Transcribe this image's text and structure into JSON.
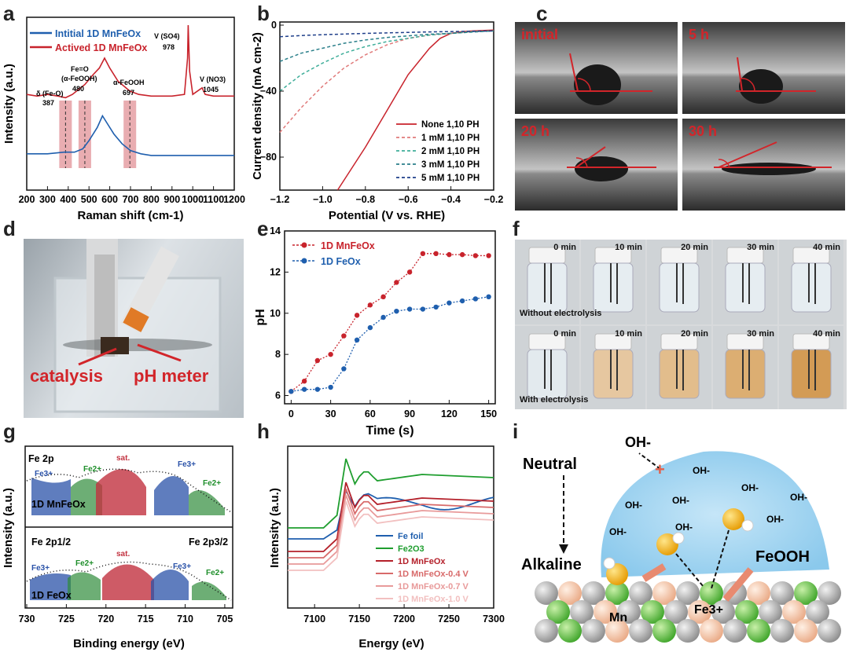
{
  "panel_labels": [
    "a",
    "b",
    "c",
    "d",
    "e",
    "f",
    "g",
    "h",
    "i"
  ],
  "panel_a": {
    "chart_data": {
      "type": "line",
      "xlabel": "Raman shift (cm-1)",
      "ylabel": "Intensity (a.u.)",
      "xlim": [
        200,
        1200
      ],
      "xticks": [
        200,
        300,
        400,
        500,
        600,
        700,
        800,
        900,
        1000,
        1100,
        1200
      ],
      "series": [
        {
          "name": "Intitial 1D MnFeOx",
          "color": "#1f5fae",
          "x": [
            200,
            300,
            380,
            430,
            470,
            500,
            540,
            565,
            590,
            620,
            660,
            700,
            750,
            800,
            900,
            1000,
            1100,
            1200
          ],
          "y": [
            0.22,
            0.22,
            0.23,
            0.23,
            0.25,
            0.3,
            0.38,
            0.45,
            0.4,
            0.34,
            0.28,
            0.24,
            0.22,
            0.21,
            0.21,
            0.21,
            0.21,
            0.21
          ]
        },
        {
          "name": "Actived 1D MnFeOx",
          "color": "#c8232c",
          "x": [
            200,
            250,
            300,
            350,
            387,
            420,
            480,
            520,
            550,
            575,
            600,
            640,
            697,
            740,
            800,
            900,
            960,
            975,
            978,
            985,
            1000,
            1045,
            1060,
            1100,
            1200
          ],
          "y": [
            0.58,
            0.57,
            0.58,
            0.57,
            0.56,
            0.58,
            0.64,
            0.7,
            0.74,
            0.8,
            0.74,
            0.66,
            0.6,
            0.58,
            0.57,
            0.57,
            0.58,
            0.8,
            1.0,
            0.72,
            0.58,
            0.62,
            0.58,
            0.57,
            0.57
          ]
        }
      ],
      "annotations": [
        {
          "text": "δ (Fe-O)",
          "value": "387"
        },
        {
          "text": "Fe=O",
          "text2": "(α-FeOOH)",
          "value": "480"
        },
        {
          "text": "α-FeOOH",
          "value": "697"
        },
        {
          "text": "V (SO4)",
          "value": "978"
        },
        {
          "text": "V (NO3)",
          "value": "1045"
        }
      ],
      "highlight_bands": [
        387,
        480,
        697
      ]
    }
  },
  "panel_b": {
    "chart_data": {
      "type": "line",
      "xlabel": "Potential (V vs. RHE)",
      "ylabel": "Current density (mA cm-2)",
      "xlim": [
        -1.2,
        -0.2
      ],
      "ylim": [
        -100,
        0
      ],
      "xticks": [
        -1.2,
        -1.0,
        -0.8,
        -0.6,
        -0.4,
        -0.2
      ],
      "yticks": [
        0,
        -40,
        -80
      ],
      "series": [
        {
          "name": "None 1,10 PH",
          "color": "#c8232c",
          "dash": false,
          "x": [
            -0.93,
            -0.88,
            -0.8,
            -0.7,
            -0.6,
            -0.5,
            -0.45,
            -0.4,
            -0.35,
            -0.3,
            -0.2
          ],
          "y": [
            -100,
            -90,
            -74,
            -52,
            -30,
            -14,
            -8,
            -5,
            -4,
            -3.5,
            -3
          ]
        },
        {
          "name": "1 mM 1,10 PH",
          "color": "#e07a7a",
          "dash": true,
          "x": [
            -1.2,
            -1.1,
            -1.0,
            -0.9,
            -0.8,
            -0.7,
            -0.6,
            -0.5,
            -0.4,
            -0.3,
            -0.2
          ],
          "y": [
            -65,
            -50,
            -37,
            -26,
            -18,
            -12,
            -8,
            -6,
            -5,
            -4,
            -3.5
          ]
        },
        {
          "name": "2 mM 1,10 PH",
          "color": "#3fae9a",
          "dash": true,
          "x": [
            -1.2,
            -1.1,
            -1.0,
            -0.9,
            -0.8,
            -0.7,
            -0.6,
            -0.5,
            -0.4,
            -0.3,
            -0.2
          ],
          "y": [
            -40,
            -30,
            -23,
            -17,
            -13,
            -10,
            -8,
            -6,
            -5,
            -4,
            -3.5
          ]
        },
        {
          "name": "3 mM 1,10 PH",
          "color": "#2a7f8a",
          "dash": true,
          "x": [
            -1.2,
            -1.1,
            -1.0,
            -0.9,
            -0.8,
            -0.7,
            -0.6,
            -0.5,
            -0.4,
            -0.3,
            -0.2
          ],
          "y": [
            -22,
            -17,
            -14,
            -11,
            -9,
            -7.5,
            -6.5,
            -5.5,
            -5,
            -4.2,
            -3.5
          ]
        },
        {
          "name": "5 mM 1,10 PH",
          "color": "#1f3f8a",
          "dash": true,
          "x": [
            -1.2,
            -1.1,
            -1.0,
            -0.9,
            -0.8,
            -0.7,
            -0.6,
            -0.5,
            -0.4,
            -0.3,
            -0.2
          ],
          "y": [
            -7,
            -6.3,
            -5.8,
            -5.4,
            -5,
            -4.7,
            -4.4,
            -4.1,
            -3.9,
            -3.7,
            -3.5
          ]
        }
      ]
    }
  },
  "panel_c": {
    "tiles": [
      "initial",
      "5 h",
      "20 h",
      "30 h"
    ]
  },
  "panel_d": {
    "labels": [
      "catalysis",
      "pH meter"
    ]
  },
  "panel_e": {
    "chart_data": {
      "type": "line",
      "xlabel": "Time (s)",
      "ylabel": "pH",
      "xlim": [
        -5,
        155
      ],
      "ylim": [
        5.6,
        14
      ],
      "xticks": [
        0,
        30,
        60,
        90,
        120,
        150
      ],
      "yticks": [
        6,
        8,
        10,
        12,
        14
      ],
      "series": [
        {
          "name": "1D MnFeOx",
          "color": "#c8232c",
          "x": [
            0,
            10,
            20,
            30,
            40,
            50,
            60,
            70,
            80,
            90,
            100,
            110,
            120,
            130,
            140,
            150
          ],
          "y": [
            6.2,
            6.7,
            7.7,
            8.0,
            8.9,
            9.9,
            10.4,
            10.8,
            11.5,
            12.0,
            12.9,
            12.9,
            12.85,
            12.85,
            12.8,
            12.8
          ]
        },
        {
          "name": "1D FeOx",
          "color": "#1f5fae",
          "x": [
            0,
            10,
            20,
            30,
            40,
            50,
            60,
            70,
            80,
            90,
            100,
            110,
            120,
            130,
            140,
            150
          ],
          "y": [
            6.2,
            6.3,
            6.3,
            6.4,
            7.3,
            8.7,
            9.3,
            9.8,
            10.1,
            10.2,
            10.2,
            10.3,
            10.5,
            10.6,
            10.7,
            10.8
          ]
        }
      ]
    }
  },
  "panel_f": {
    "times": [
      "0 min",
      "10 min",
      "20 min",
      "30 min",
      "40 min"
    ],
    "row_labels": [
      "Without electrolysis",
      "With electrolysis"
    ]
  },
  "panel_g": {
    "chart_data": [
      {
        "type": "line",
        "title": "Fe 2p",
        "sample": "1D MnFeOx",
        "peaks": [
          "Fe3+",
          "Fe2+",
          "sat.",
          "Fe3+",
          "Fe2+"
        ]
      },
      {
        "type": "line",
        "title_left": "Fe 2p1/2",
        "title_right": "Fe 2p3/2",
        "sample": "1D FeOx",
        "peaks": [
          "Fe3+",
          "Fe2+",
          "sat.",
          "Fe3+",
          "Fe2+"
        ]
      }
    ],
    "xlabel": "Binding energy (eV)",
    "ylabel": "Intensity (a.u.)",
    "xticks": [
      730,
      725,
      720,
      715,
      710,
      705
    ],
    "xlim": [
      730,
      704
    ]
  },
  "panel_h": {
    "chart_data": {
      "type": "line",
      "xlabel": "Energy (eV)",
      "ylabel": "Intensity (a.u.)",
      "xlim": [
        7070,
        7300
      ],
      "xticks": [
        7100,
        7150,
        7200,
        7250,
        7300
      ],
      "legend": [
        {
          "name": "Fe foil",
          "color": "#1f5fae"
        },
        {
          "name": "Fe2O3",
          "color": "#1f9e2f"
        },
        {
          "name": "1D MnFeOx",
          "color": "#b4202a"
        },
        {
          "name": "1D MnFeOx-0.4 V",
          "color": "#d86a6a"
        },
        {
          "name": "1D MnFeOx-0.7 V",
          "color": "#e89a9a"
        },
        {
          "name": "1D MnFeOx-1.0 V",
          "color": "#f2c0c0"
        }
      ]
    }
  },
  "panel_i": {
    "texts": [
      "Neutral",
      "Alkaline",
      "OH-",
      "FeOOH",
      "Mn",
      "Fe3+"
    ]
  }
}
